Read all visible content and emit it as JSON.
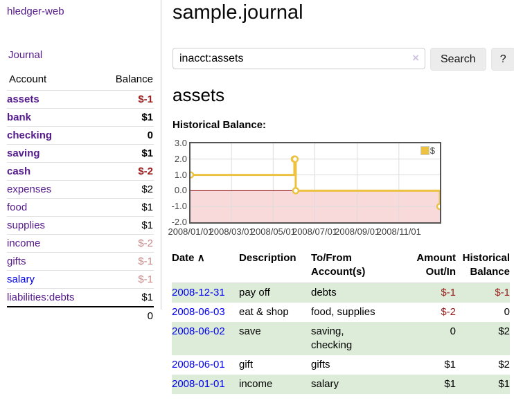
{
  "colors": {
    "link_purple": "#551a8b",
    "link_blue": "#0000ee",
    "negative_strong": "#9b1c1c",
    "negative_dim": "#c88888",
    "row_green": "#ddecd8",
    "chart_line": "#edc240",
    "chart_negative_fill": "#f9dada",
    "chart_zero_line": "#8b0000",
    "chart_border": "#545454"
  },
  "app": {
    "brand": "hledger-web"
  },
  "sidebar": {
    "nav": {
      "journal_label": "Journal"
    },
    "accounts_table": {
      "headers": {
        "account": "Account",
        "balance": "Balance"
      },
      "rows": [
        {
          "name": "assets",
          "depth": 1,
          "balance": "$-1",
          "bold": true,
          "neg": "strong"
        },
        {
          "name": "bank",
          "depth": 2,
          "balance": "$1",
          "bold": true
        },
        {
          "name": "checking",
          "depth": 3,
          "balance": "0",
          "bold": true
        },
        {
          "name": "saving",
          "depth": 3,
          "balance": "$1",
          "bold": true
        },
        {
          "name": "cash",
          "depth": 2,
          "balance": "$-2",
          "bold": true,
          "neg": "strong"
        },
        {
          "name": "expenses",
          "depth": 1,
          "balance": "$2"
        },
        {
          "name": "food",
          "depth": 2,
          "balance": "$1"
        },
        {
          "name": "supplies",
          "depth": 2,
          "balance": "$1"
        },
        {
          "name": "income",
          "depth": 1,
          "balance": "$-2",
          "neg": "dim"
        },
        {
          "name": "gifts",
          "depth": 2,
          "balance": "$-1",
          "neg": "dim"
        },
        {
          "name": "salary",
          "depth": 2,
          "balance": "$-1",
          "neg": "dim",
          "link": "blue"
        },
        {
          "name": "liabilities:debts",
          "depth": 1,
          "balance": "$1"
        }
      ],
      "total": "0"
    }
  },
  "header": {
    "title": "sample.journal"
  },
  "search": {
    "value": "inacct:assets",
    "clear_icon": "×",
    "button_label": "Search",
    "help_label": "?"
  },
  "account_page": {
    "heading": "assets",
    "chart_title": "Historical Balance:"
  },
  "chart_data": {
    "type": "line",
    "title": "Historical Balance:",
    "step": true,
    "legend": {
      "label": "$",
      "position": "top-right"
    },
    "ylim": [
      -2,
      3
    ],
    "x_max_day": 365,
    "y_ticks": [
      "3.0",
      "2.0",
      "1.0",
      "0.0",
      "-1.0",
      "-2.0"
    ],
    "x_ticks": [
      {
        "label": "2008/01/01",
        "day": 0
      },
      {
        "label": "2008/03/01",
        "day": 60
      },
      {
        "label": "2008/05/01",
        "day": 121
      },
      {
        "label": "2008/07/01",
        "day": 182
      },
      {
        "label": "2008/09/01",
        "day": 244
      },
      {
        "label": "2008/11/01",
        "day": 305
      }
    ],
    "series": [
      {
        "name": "$",
        "color": "#edc240",
        "points": [
          {
            "date": "2008-01-01",
            "day": 0,
            "value": 1
          },
          {
            "date": "2008-06-01",
            "day": 152,
            "value": 2
          },
          {
            "date": "2008-06-02",
            "day": 153,
            "value": 2
          },
          {
            "date": "2008-06-03",
            "day": 154,
            "value": 0
          },
          {
            "date": "2008-12-31",
            "day": 365,
            "value": -1
          }
        ]
      }
    ],
    "negative_region_fill": "#f9dada",
    "zero_line_color": "#8b0000",
    "grid": true
  },
  "register_table": {
    "headers": {
      "date": "Date",
      "sort_icon": "∧",
      "description": "Description",
      "tofrom_line1": "To/From",
      "tofrom_line2": "Account(s)",
      "amount_line1": "Amount",
      "amount_line2": "Out/In",
      "historical_line1": "Historical",
      "historical_line2": "Balance"
    },
    "rows": [
      {
        "date": "2008-12-31",
        "description": "pay off",
        "accounts_lines": [
          "debts"
        ],
        "amount": "$-1",
        "balance": "$-1",
        "amount_neg": true,
        "balance_neg": true,
        "shaded": true
      },
      {
        "date": "2008-06-03",
        "description": "eat & shop",
        "accounts_lines": [
          "food, supplies"
        ],
        "amount": "$-2",
        "balance": "0",
        "amount_neg": true,
        "balance_neg": false,
        "shaded": false
      },
      {
        "date": "2008-06-02",
        "description": "save",
        "accounts_lines": [
          "saving,",
          "checking"
        ],
        "amount": "0",
        "balance": "$2",
        "amount_neg": false,
        "balance_neg": false,
        "shaded": true
      },
      {
        "date": "2008-06-01",
        "description": "gift",
        "accounts_lines": [
          "gifts"
        ],
        "amount": "$1",
        "balance": "$2",
        "amount_neg": false,
        "balance_neg": false,
        "shaded": false
      },
      {
        "date": "2008-01-01",
        "description": "income",
        "accounts_lines": [
          "salary"
        ],
        "amount": "$1",
        "balance": "$1",
        "amount_neg": false,
        "balance_neg": false,
        "shaded": true
      }
    ]
  }
}
